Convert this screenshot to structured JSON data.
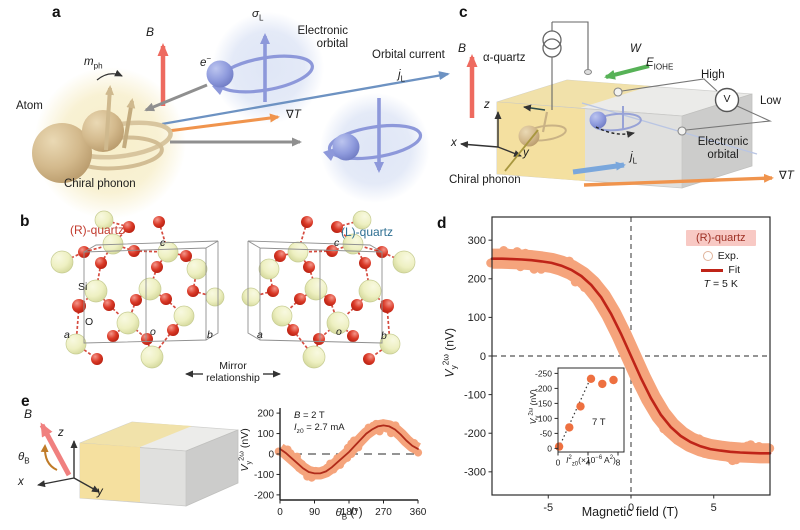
{
  "figure": {
    "panel_labels": {
      "a": "a",
      "b": "b",
      "c": "c",
      "d": "d",
      "e": "e"
    }
  },
  "panel_a": {
    "b_field": "*B*",
    "m_ph": "*m*~ph~",
    "atom": "Atom",
    "chiral_phonon": "Chiral phonon",
    "electron": "*e*^−^",
    "sigma_l": "*σ*~L~",
    "electronic_orbital": "Electronic orbital",
    "orbital_current": "Orbital current",
    "j_l": "*j*~L~",
    "grad_t": "∇*T*"
  },
  "panel_b": {
    "r_quartz": "(R)-quartz",
    "l_quartz": "(L)-quartz",
    "si": "Si",
    "o": "O",
    "cell_r": {
      "a": "*a*",
      "o": "*o*",
      "b": "*b*",
      "c": "*c*"
    },
    "cell_l": {
      "a": "*a*",
      "o": "*o*",
      "b": "*b*",
      "c": "*c*"
    },
    "mirror": "Mirror relationship"
  },
  "panel_c": {
    "b_field": "*B*",
    "alpha_quartz": "α-quartz",
    "w": "*W*",
    "e_iohe": "*E*~IOHE~",
    "high": "High",
    "voltmeter": "V",
    "low": "Low",
    "axis_x": "*x*",
    "axis_y": "*y*",
    "axis_z": "*z*",
    "chiral_phonon": "Chiral phonon",
    "electronic_orbital": "Electronic orbital",
    "j_l": "*j*~L~",
    "grad_t": "∇*T*"
  },
  "panel_e": {
    "b_field": "*B*",
    "theta_b": "*θ*~B~",
    "axis_x": "*x*",
    "axis_y": "*y*",
    "axis_z": "*z*"
  },
  "chart_data": [
    {
      "type": "line",
      "xlabel": "Magnetic field (T)",
      "ylabel": "*V*~y~^2ω^ (nV)",
      "xlim": [
        -8.4,
        8.4
      ],
      "ylim": [
        -360,
        360
      ],
      "xticks": [
        -5,
        0,
        5
      ],
      "yticks": [
        -300,
        -200,
        -100,
        0,
        100,
        200,
        300
      ],
      "frame": "box",
      "tick_font": 11,
      "dash_x0": true,
      "dash_y0": true,
      "dash": "5,4",
      "legend": {
        "sample": "(R)-quartz",
        "exp": "Exp.",
        "fit": "Fit",
        "note": "*T* = 5 K",
        "sample_bg": "#f8c9c4",
        "accent": "#bf2418"
      },
      "series": [
        {
          "kind": "fitband",
          "name": "Exp. band + Fit",
          "x": [
            -8.4,
            -7.8,
            -7.2,
            -6.6,
            -6,
            -5.4,
            -4.8,
            -4.2,
            -3.6,
            -3,
            -2.4,
            -1.8,
            -1.2,
            -0.6,
            0,
            0.6,
            1.2,
            1.8,
            2.4,
            3,
            3.6,
            4.2,
            4.8,
            5.4,
            6,
            6.6,
            7.2,
            7.8,
            8.4
          ],
          "y": [
            252,
            252,
            251,
            250,
            248,
            245,
            241,
            234,
            223,
            207,
            184,
            152,
            109,
            57,
            0,
            -57,
            -109,
            -152,
            -184,
            -207,
            -223,
            -234,
            -241,
            -245,
            -248,
            -250,
            -251,
            -252,
            -252
          ],
          "line_color": "#bf2418",
          "line_width": 2.6,
          "band_color": "#f5a47c",
          "band_halfwidth": 26,
          "dot_r": 4.5,
          "dots": 72
        }
      ]
    },
    {
      "type": "scatter",
      "xlabel": "*I*^2^~z0~(×10^−6^ A^2^)",
      "ylabel": "*V*~y~^2ω^ (nV)",
      "annotation": "7 T",
      "xlim": [
        0,
        8.8
      ],
      "ylim": [
        12,
        -268
      ],
      "xticks": [
        0,
        4,
        8
      ],
      "yticks": [
        0,
        -50,
        -100,
        -150,
        -200,
        -250
      ],
      "frame": "box",
      "frame_width": 1,
      "tick_font": 8.5,
      "bg": "#fff",
      "series": [
        {
          "kind": "dotline",
          "points": [
            [
              0.1,
              -2
            ],
            [
              4.6,
              -248
            ]
          ],
          "color": "#333",
          "width": 1.2,
          "dash": "1.5,2.6"
        },
        {
          "kind": "dots",
          "points": [
            [
              0.15,
              -6
            ],
            [
              1.5,
              -70
            ],
            [
              3,
              -140
            ],
            [
              4.4,
              -232
            ],
            [
              5.9,
              -215
            ],
            [
              7.4,
              -228
            ]
          ],
          "color": "#ee7040",
          "r": 4.2
        }
      ]
    },
    {
      "type": "line",
      "xlabel": "*θ*~B~ (°)",
      "ylabel": "*V*~y~^2ω^ (nV)",
      "annotations": [
        "*B* = 2 T",
        "*I*~z0~ = 2.7 mA"
      ],
      "xlim": [
        0,
        360
      ],
      "ylim": [
        -225,
        225
      ],
      "xticks": [
        0,
        90,
        180,
        270,
        360
      ],
      "yticks": [
        -200,
        -100,
        0,
        100,
        200
      ],
      "frame": "axes",
      "frame_color": "#222",
      "frame_width": 1.4,
      "tick_font": 10,
      "dash_y0": true,
      "dash": "8,6",
      "series": [
        {
          "kind": "fitband",
          "name": "Exp. band + Fit",
          "x": [
            0,
            15,
            30,
            45,
            60,
            75,
            90,
            105,
            120,
            135,
            150,
            165,
            180,
            195,
            210,
            225,
            240,
            255,
            270,
            285,
            300,
            315,
            330,
            345,
            360
          ],
          "y": [
            25,
            5,
            -20,
            -45,
            -70,
            -88,
            -95,
            -95,
            -85,
            -65,
            -40,
            -15,
            10,
            40,
            70,
            100,
            120,
            135,
            140,
            135,
            120,
            95,
            65,
            40,
            25
          ],
          "line_color": "#b02c1a",
          "line_width": 1.8,
          "band_color": "#f5a47c",
          "band_halfwidth": 30,
          "dot_r": 4,
          "dots": 55
        }
      ]
    }
  ]
}
